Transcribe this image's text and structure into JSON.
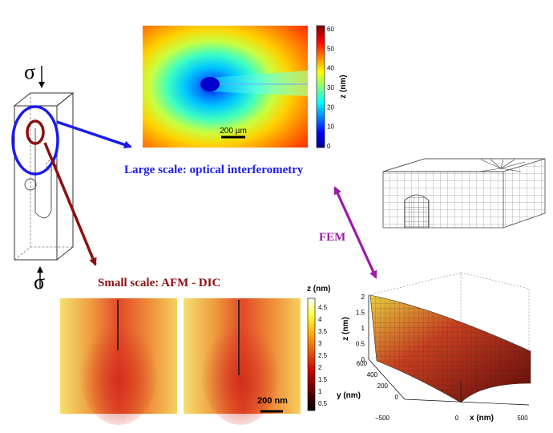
{
  "specimen": {
    "sigma_top": "σ",
    "sigma_bottom": "σ"
  },
  "optical": {
    "scale_bar": "200 µm",
    "colorbar_label": "z (nm)",
    "colorbar_ticks": [
      "60",
      "50",
      "40",
      "30",
      "20",
      "10",
      "0"
    ]
  },
  "labels": {
    "large_scale": "Large scale: optical interferometry",
    "small_scale": "Small scale: AFM - DIC",
    "fem": "FEM"
  },
  "afm": {
    "scale_bar": "200 nm",
    "colorbar_label": "z (nm)",
    "colorbar_ticks": [
      "4.5",
      "4",
      "3.5",
      "3",
      "2.5",
      "2",
      "1.5",
      "1",
      "0.5"
    ]
  },
  "surface": {
    "z_label": "z (nm)",
    "y_label": "y (nm)",
    "x_label": "x (nm)",
    "z_ticks": [
      "2",
      "1.5",
      "1",
      "0.5",
      "0"
    ],
    "y_ticks": [
      "600",
      "400",
      "200",
      "0"
    ],
    "x_ticks": [
      "−500",
      "0",
      "500"
    ]
  },
  "colors": {
    "blue": "#1a1aee",
    "darkred": "#8b1010",
    "purple": "#9b1aa8"
  }
}
